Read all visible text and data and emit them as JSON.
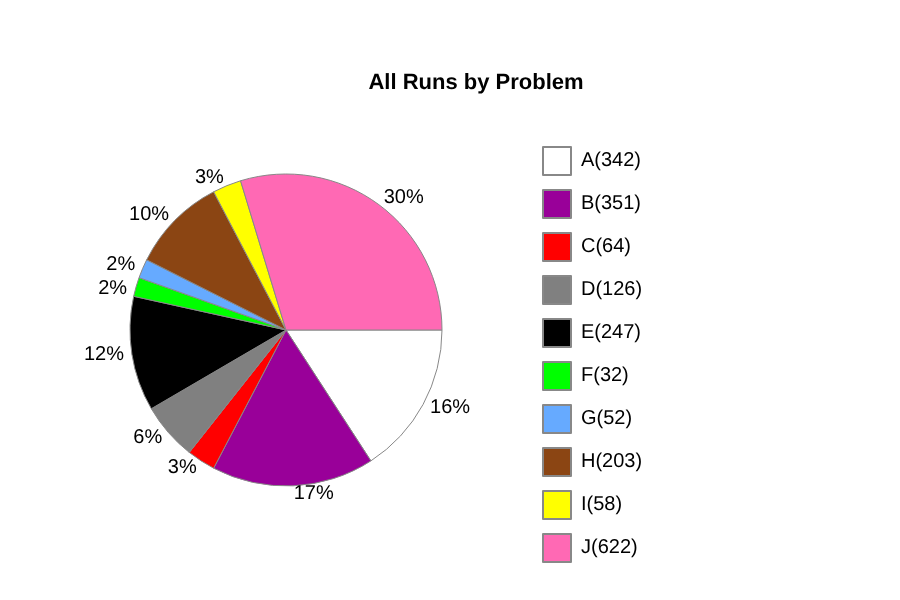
{
  "chart_data": {
    "type": "pie",
    "title": "All Runs by Problem",
    "categories": [
      "A(342)",
      "B(351)",
      "C(64)",
      "D(126)",
      "E(247)",
      "F(32)",
      "G(52)",
      "H(203)",
      "I(58)",
      "J(622)"
    ],
    "values": [
      16,
      17,
      3,
      6,
      12,
      2,
      2,
      10,
      3,
      30
    ],
    "value_labels": [
      "16%",
      "17%",
      "3%",
      "6%",
      "12%",
      "2%",
      "2%",
      "10%",
      "3%",
      "30%"
    ],
    "colors": [
      "#ffffff",
      "#990099",
      "#ff0000",
      "#808080",
      "#000000",
      "#00ff00",
      "#66aaff",
      "#8b4513",
      "#ffff00",
      "#ff69b4"
    ],
    "legend": "right"
  }
}
